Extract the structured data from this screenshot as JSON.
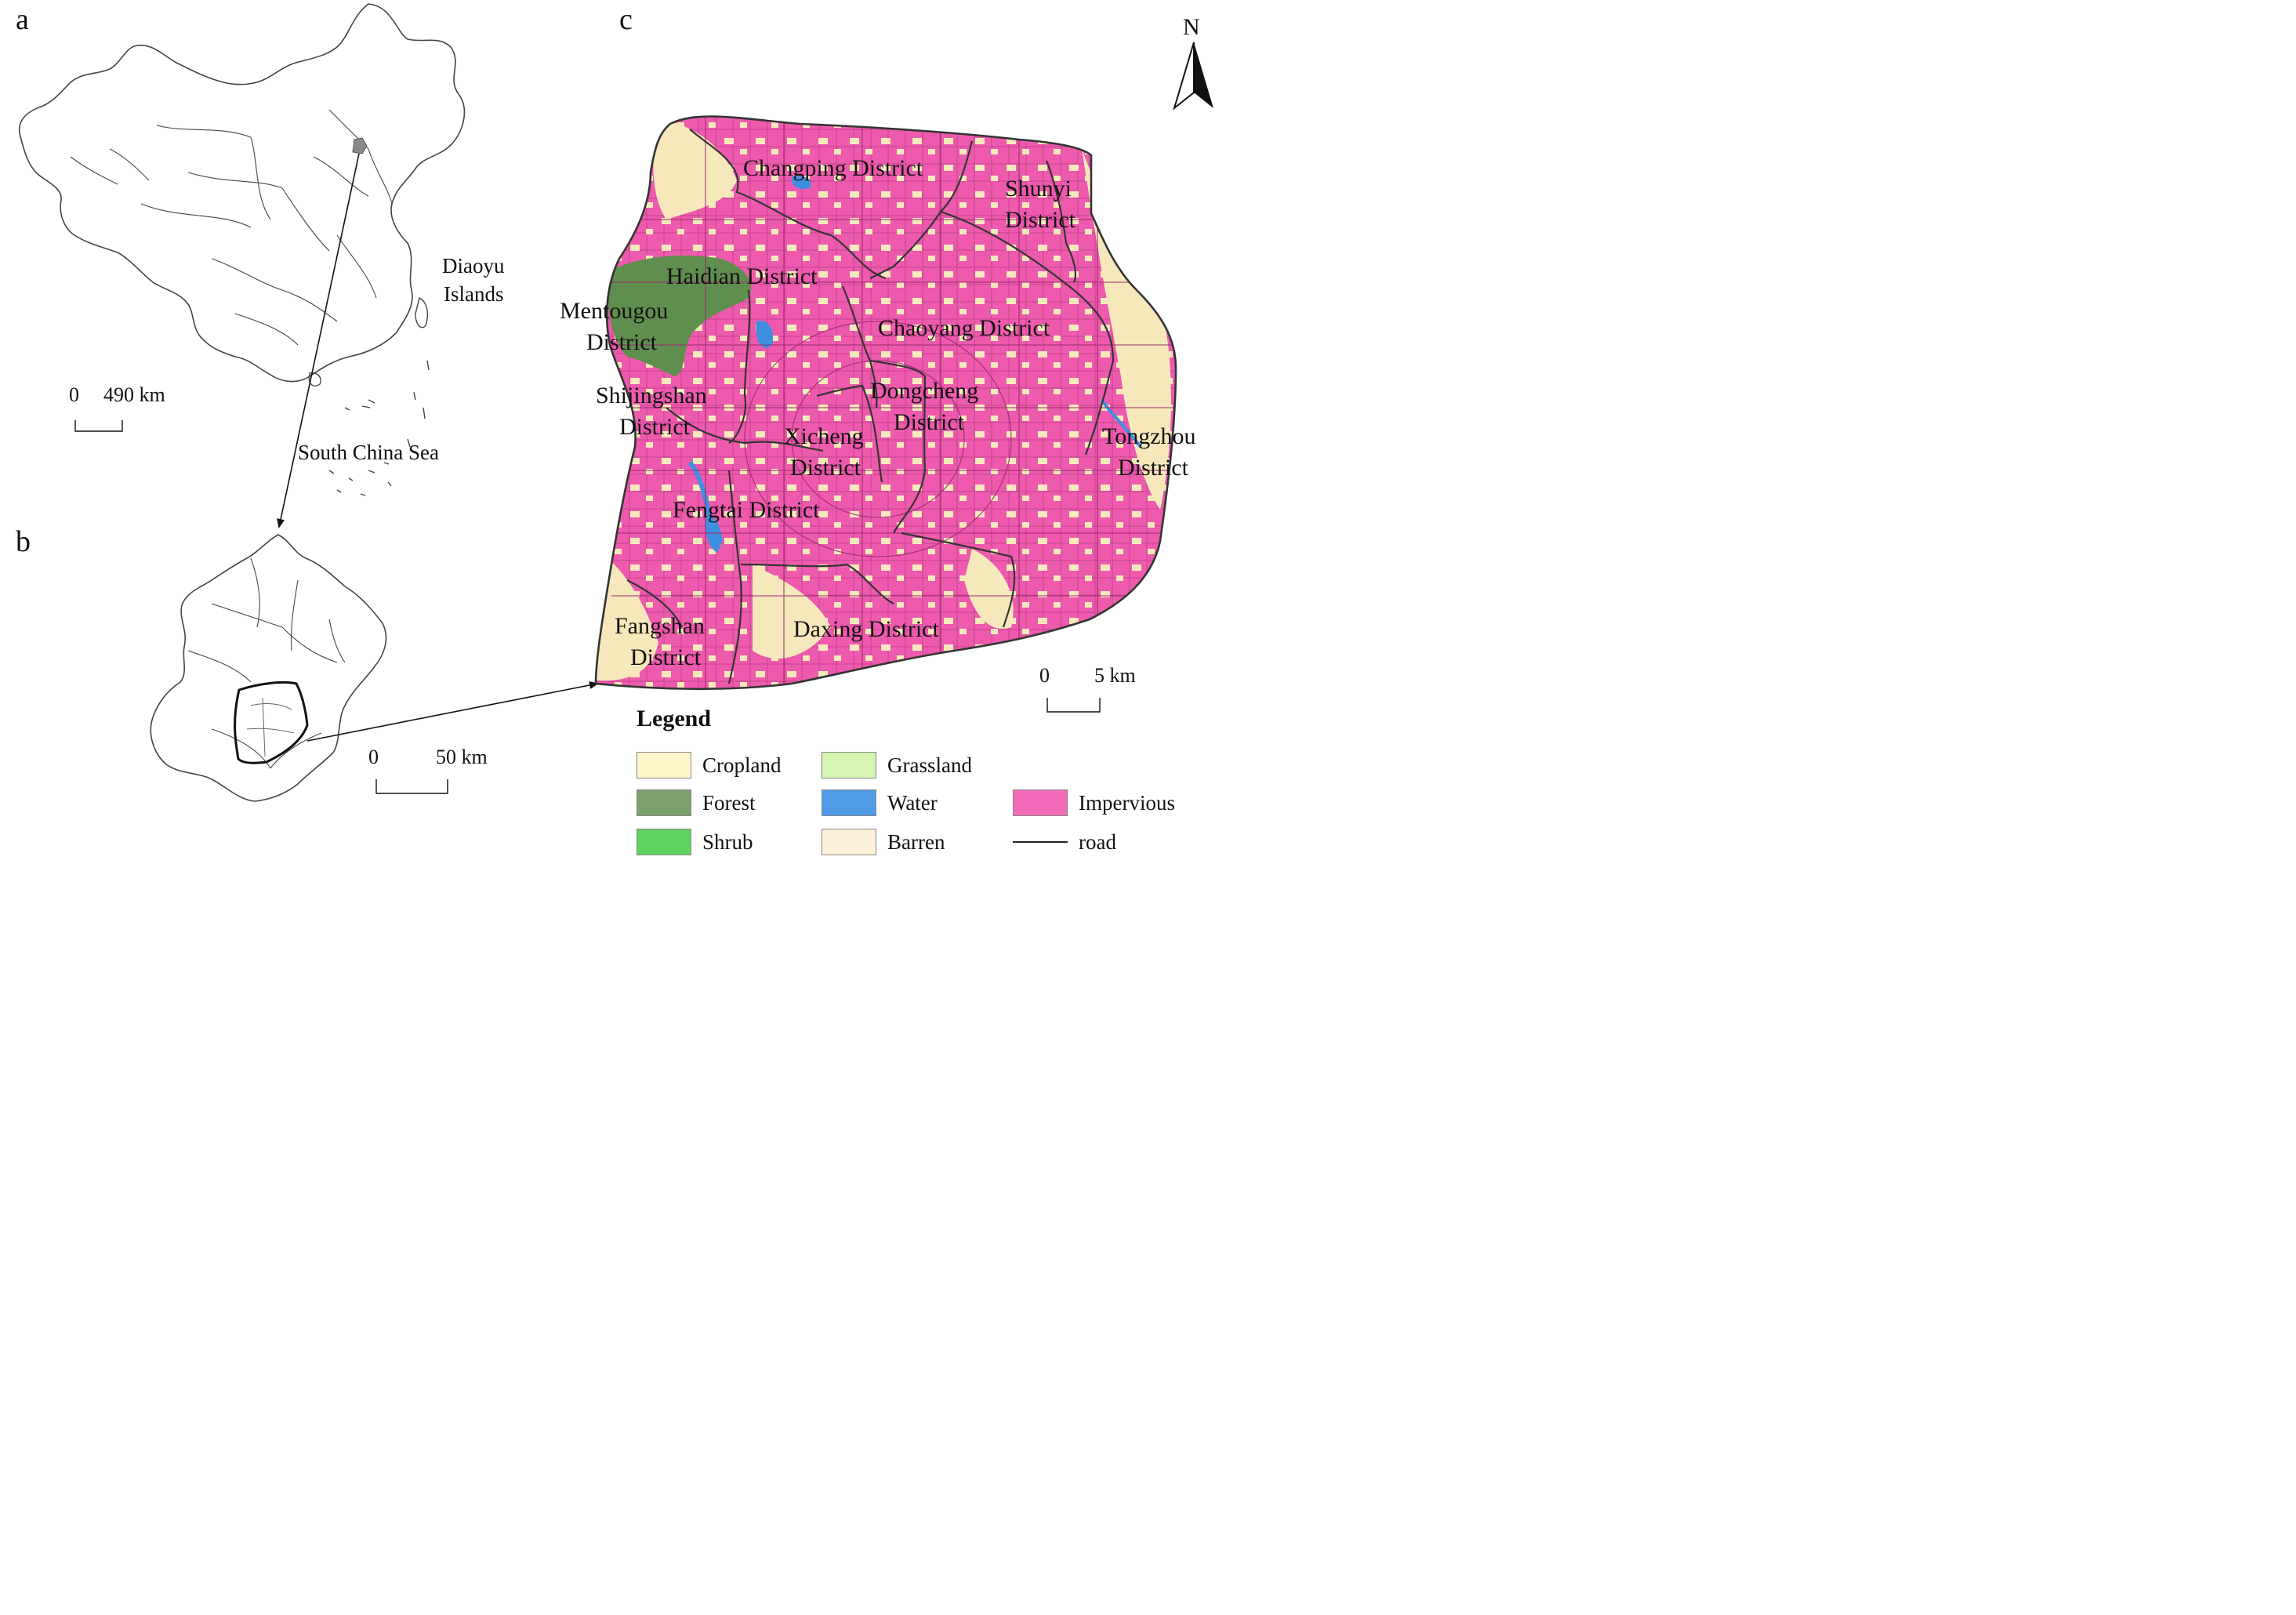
{
  "panels": {
    "a": {
      "letter": "a",
      "scale": {
        "zero": "0",
        "value": "490 km"
      },
      "label_diaoyu_1": "Diaoyu",
      "label_diaoyu_2": "Islands",
      "label_scs": "South China Sea"
    },
    "b": {
      "letter": "b",
      "scale": {
        "zero": "0",
        "value": "50 km"
      }
    },
    "c": {
      "letter": "c",
      "north": "N",
      "scale": {
        "zero": "0",
        "value": "5 km"
      }
    }
  },
  "districts": {
    "changping": "Changping District",
    "shunyi_1": "Shunyi",
    "shunyi_2": "District",
    "haidian": "Haidian District",
    "mentougou_1": "Mentougou",
    "mentougou_2": "District",
    "chaoyang": "Chaoyang District",
    "dongcheng_1": "Dongcheng",
    "dongcheng_2": "District",
    "shijingshan_1": "Shijingshan",
    "shijingshan_2": "District",
    "xicheng_1": "Xicheng",
    "xicheng_2": "District",
    "tongzhou_1": "Tongzhou",
    "tongzhou_2": "District",
    "fengtai": "Fengtai District",
    "fangshan_1": "Fangshan",
    "fangshan_2": "District",
    "daxing": "Daxing District"
  },
  "legend": {
    "title": "Legend",
    "items": [
      {
        "label": "Cropland",
        "color": "#fdf6c8",
        "kind": "fill"
      },
      {
        "label": "Grassland",
        "color": "#d6f5b0",
        "kind": "fill"
      },
      {
        "label": "Forest",
        "color": "#7aa26a",
        "kind": "fill"
      },
      {
        "label": "Water",
        "color": "#4f9be6",
        "kind": "fill"
      },
      {
        "label": "Impervious",
        "color": "#f26bb8",
        "kind": "fill"
      },
      {
        "label": "Shrub",
        "color": "#5fd35f",
        "kind": "fill"
      },
      {
        "label": "Barren",
        "color": "#fdf0d8",
        "kind": "fill"
      },
      {
        "label": "road",
        "color": "#222222",
        "kind": "line"
      }
    ]
  },
  "colors": {
    "impervious": "#ee5aae",
    "cropland": "#f7f1bc",
    "forest": "#5f8f4e",
    "water": "#3f8fe0",
    "road": "#9a2a6e",
    "boundary": "#333333",
    "region_b_fill": "#8a8a8a"
  }
}
